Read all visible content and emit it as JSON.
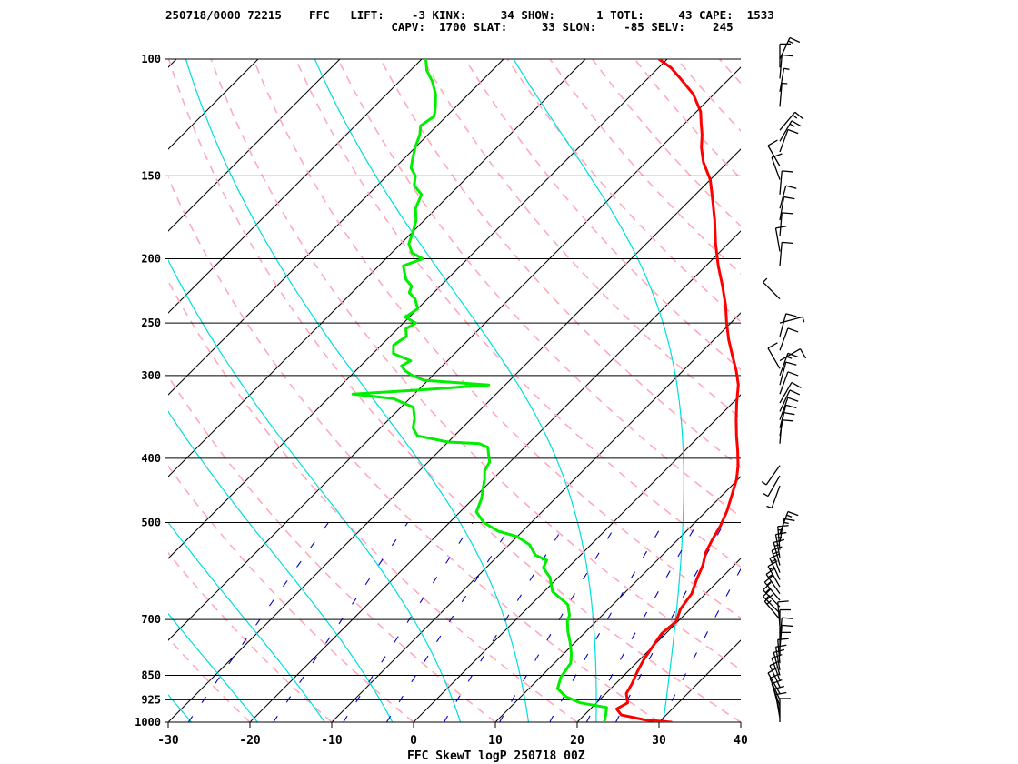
{
  "header": {
    "line1": "250718/0000 72215    FFC   LIFT:    -3 KINX:     34 SHOW:      1 TOTL:     43 CAPE:  1533",
    "line2": "                                 CAPV:  1700 SLAT:     33 SLON:    -85 SELV:    245"
  },
  "chart_data": {
    "type": "line",
    "title": "FFC SkewT logP 250718 00Z",
    "xlabel": "",
    "ylabel": "",
    "x_range": [
      -30,
      40
    ],
    "p_range": [
      1000,
      100
    ],
    "y_scale": "log",
    "x_ticks": [
      "-30",
      "-20",
      "-10",
      "0",
      "10",
      "20",
      "30",
      "40"
    ],
    "x_tick_values": [
      -30,
      -20,
      -10,
      0,
      10,
      20,
      30,
      40
    ],
    "p_ticks": [
      "100",
      "150",
      "200",
      "250",
      "300",
      "400",
      "500",
      "700",
      "850",
      "925",
      "1000"
    ],
    "p_tick_values": [
      100,
      150,
      200,
      250,
      300,
      400,
      500,
      700,
      850,
      925,
      1000
    ],
    "colors": {
      "temperature": "#ff0000",
      "dewpoint": "#00ee00",
      "dry_adiabat": "#ffaabb",
      "moist_adiabat": "#00dddd",
      "mixing_ratio": "#0000cc",
      "isotherm": "#000000",
      "isobar": "#000000",
      "wind": "#000000"
    },
    "series": [
      {
        "id": "temperature",
        "points": [
          [
            31.5,
            1000
          ],
          [
            28,
            992
          ],
          [
            24.5,
            975
          ],
          [
            23.2,
            955
          ],
          [
            23.8,
            935
          ],
          [
            22.5,
            905
          ],
          [
            22,
            875
          ],
          [
            21.2,
            840
          ],
          [
            20.5,
            805
          ],
          [
            20,
            770
          ],
          [
            19.5,
            735
          ],
          [
            19.8,
            705
          ],
          [
            18.8,
            675
          ],
          [
            18.3,
            640
          ],
          [
            17.2,
            610
          ],
          [
            16.2,
            580
          ],
          [
            15,
            555
          ],
          [
            14.2,
            530
          ],
          [
            13.5,
            505
          ],
          [
            12.5,
            480
          ],
          [
            11.2,
            455
          ],
          [
            9.8,
            430
          ],
          [
            8.3,
            410
          ],
          [
            6.5,
            390
          ],
          [
            4.5,
            370
          ],
          [
            2.5,
            350
          ],
          [
            0.5,
            330
          ],
          [
            -1.5,
            310
          ],
          [
            -3.5,
            295
          ],
          [
            -5.8,
            280
          ],
          [
            -8.2,
            265
          ],
          [
            -10.5,
            250
          ],
          [
            -12.8,
            235
          ],
          [
            -15.5,
            220
          ],
          [
            -18.5,
            205
          ],
          [
            -21.5,
            190
          ],
          [
            -24.5,
            175
          ],
          [
            -27.5,
            162
          ],
          [
            -30,
            152
          ],
          [
            -33,
            143
          ],
          [
            -35,
            136
          ],
          [
            -36.5,
            130
          ],
          [
            -38,
            125
          ],
          [
            -39.5,
            120
          ],
          [
            -42.5,
            113
          ],
          [
            -46,
            107
          ],
          [
            -48.5,
            103
          ],
          [
            -51,
            100
          ]
        ]
      },
      {
        "id": "dewpoint",
        "points": [
          [
            23.3,
            1000
          ],
          [
            22.6,
            975
          ],
          [
            21.8,
            950
          ],
          [
            18,
            935
          ],
          [
            15.5,
            915
          ],
          [
            13.5,
            890
          ],
          [
            12.5,
            855
          ],
          [
            12,
            815
          ],
          [
            11,
            790
          ],
          [
            9.5,
            760
          ],
          [
            7.8,
            730
          ],
          [
            6.5,
            705
          ],
          [
            6,
            690
          ],
          [
            4.5,
            665
          ],
          [
            1,
            635
          ],
          [
            -1,
            605
          ],
          [
            -3,
            585
          ],
          [
            -3.5,
            570
          ],
          [
            -5.5,
            560
          ],
          [
            -7.5,
            540
          ],
          [
            -10,
            525
          ],
          [
            -13,
            515
          ],
          [
            -15.8,
            500
          ],
          [
            -18,
            482
          ],
          [
            -19,
            460
          ],
          [
            -20,
            445
          ],
          [
            -21,
            430
          ],
          [
            -22,
            418
          ],
          [
            -22.5,
            405
          ],
          [
            -23.5,
            395
          ],
          [
            -24.5,
            385
          ],
          [
            -26,
            380
          ],
          [
            -30,
            378
          ],
          [
            -34.5,
            370
          ],
          [
            -36,
            360
          ],
          [
            -37,
            348
          ],
          [
            -38.5,
            335
          ],
          [
            -42,
            325
          ],
          [
            -47.5,
            320
          ],
          [
            -39,
            315
          ],
          [
            -32,
            310
          ],
          [
            -40.5,
            305
          ],
          [
            -42.5,
            300
          ],
          [
            -44,
            295
          ],
          [
            -45,
            290
          ],
          [
            -44.5,
            285
          ],
          [
            -47.5,
            278
          ],
          [
            -48.5,
            270
          ],
          [
            -48,
            262
          ],
          [
            -49,
            255
          ],
          [
            -48.5,
            250
          ],
          [
            -50.5,
            245
          ],
          [
            -50,
            238
          ],
          [
            -51.5,
            230
          ],
          [
            -53,
            225
          ],
          [
            -53.5,
            220
          ],
          [
            -55,
            215
          ],
          [
            -56,
            210
          ],
          [
            -57,
            205
          ],
          [
            -55.5,
            200
          ],
          [
            -57.5,
            196
          ],
          [
            -59,
            190
          ],
          [
            -60,
            182
          ],
          [
            -61,
            175
          ],
          [
            -62.5,
            168
          ],
          [
            -63.5,
            160
          ],
          [
            -65.5,
            155
          ],
          [
            -66.5,
            150
          ],
          [
            -68,
            146
          ],
          [
            -69,
            141
          ],
          [
            -70,
            136
          ],
          [
            -71,
            130
          ],
          [
            -72,
            126
          ],
          [
            -71.5,
            122
          ],
          [
            -72.5,
            118
          ],
          [
            -74,
            113
          ],
          [
            -76,
            108
          ],
          [
            -78,
            104
          ],
          [
            -79.5,
            100
          ]
        ]
      }
    ],
    "wind_barbs": [
      {
        "p": 1000,
        "dir": 0,
        "spd": 10
      },
      {
        "p": 985,
        "dir": 350,
        "spd": 10
      },
      {
        "p": 965,
        "dir": 345,
        "spd": 10
      },
      {
        "p": 945,
        "dir": 340,
        "spd": 10
      },
      {
        "p": 925,
        "dir": 335,
        "spd": 10
      },
      {
        "p": 905,
        "dir": 330,
        "spd": 10
      },
      {
        "p": 885,
        "dir": 335,
        "spd": 10
      },
      {
        "p": 865,
        "dir": 340,
        "spd": 10
      },
      {
        "p": 850,
        "dir": 345,
        "spd": 10
      },
      {
        "p": 835,
        "dir": 350,
        "spd": 10
      },
      {
        "p": 815,
        "dir": 355,
        "spd": 10
      },
      {
        "p": 795,
        "dir": 0,
        "spd": 10
      },
      {
        "p": 775,
        "dir": 5,
        "spd": 10
      },
      {
        "p": 755,
        "dir": 5,
        "spd": 10
      },
      {
        "p": 735,
        "dir": 0,
        "spd": 10
      },
      {
        "p": 715,
        "dir": 355,
        "spd": 10
      },
      {
        "p": 700,
        "dir": 320,
        "spd": 15
      },
      {
        "p": 685,
        "dir": 315,
        "spd": 15
      },
      {
        "p": 670,
        "dir": 315,
        "spd": 15
      },
      {
        "p": 655,
        "dir": 320,
        "spd": 15
      },
      {
        "p": 640,
        "dir": 325,
        "spd": 15
      },
      {
        "p": 625,
        "dir": 330,
        "spd": 15
      },
      {
        "p": 610,
        "dir": 335,
        "spd": 15
      },
      {
        "p": 595,
        "dir": 340,
        "spd": 15
      },
      {
        "p": 580,
        "dir": 345,
        "spd": 15
      },
      {
        "p": 565,
        "dir": 350,
        "spd": 15
      },
      {
        "p": 550,
        "dir": 355,
        "spd": 15
      },
      {
        "p": 535,
        "dir": 10,
        "spd": 15
      },
      {
        "p": 520,
        "dir": 20,
        "spd": 15
      },
      {
        "p": 440,
        "dir": 200,
        "spd": 5
      },
      {
        "p": 425,
        "dir": 210,
        "spd": 5
      },
      {
        "p": 410,
        "dir": 215,
        "spd": 5
      },
      {
        "p": 380,
        "dir": 5,
        "spd": 10
      },
      {
        "p": 370,
        "dir": 10,
        "spd": 10
      },
      {
        "p": 360,
        "dir": 15,
        "spd": 10
      },
      {
        "p": 350,
        "dir": 20,
        "spd": 10
      },
      {
        "p": 340,
        "dir": 25,
        "spd": 10
      },
      {
        "p": 330,
        "dir": 30,
        "spd": 10
      },
      {
        "p": 320,
        "dir": 20,
        "spd": 10
      },
      {
        "p": 310,
        "dir": 15,
        "spd": 10
      },
      {
        "p": 300,
        "dir": 20,
        "spd": 15
      },
      {
        "p": 293,
        "dir": 330,
        "spd": 10
      },
      {
        "p": 285,
        "dir": 60,
        "spd": 10
      },
      {
        "p": 275,
        "dir": 20,
        "spd": 10
      },
      {
        "p": 262,
        "dir": 15,
        "spd": 10
      },
      {
        "p": 250,
        "dir": 75,
        "spd": 5
      },
      {
        "p": 230,
        "dir": 315,
        "spd": 5
      },
      {
        "p": 205,
        "dir": 5,
        "spd": 10
      },
      {
        "p": 195,
        "dir": 350,
        "spd": 10
      },
      {
        "p": 185,
        "dir": 5,
        "spd": 10
      },
      {
        "p": 175,
        "dir": 10,
        "spd": 10
      },
      {
        "p": 168,
        "dir": 15,
        "spd": 10
      },
      {
        "p": 160,
        "dir": 5,
        "spd": 10
      },
      {
        "p": 152,
        "dir": 340,
        "spd": 10
      },
      {
        "p": 145,
        "dir": 330,
        "spd": 10
      },
      {
        "p": 138,
        "dir": 20,
        "spd": 10
      },
      {
        "p": 133,
        "dir": 30,
        "spd": 15
      },
      {
        "p": 128,
        "dir": 40,
        "spd": 15
      },
      {
        "p": 118,
        "dir": 5,
        "spd": 5
      },
      {
        "p": 112,
        "dir": 10,
        "spd": 5
      },
      {
        "p": 107,
        "dir": 5,
        "spd": 10
      },
      {
        "p": 103,
        "dir": 0,
        "spd": 10
      },
      {
        "p": 100,
        "dir": 25,
        "spd": 15
      }
    ]
  }
}
